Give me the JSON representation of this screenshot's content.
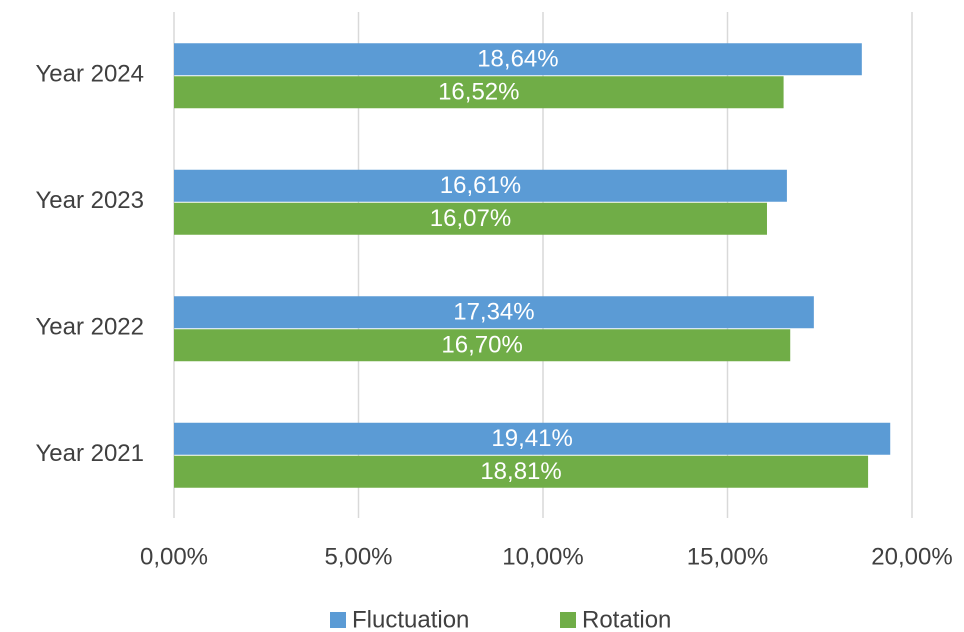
{
  "chart_data": {
    "type": "hbar",
    "categories": [
      "Year 2021",
      "Year 2022",
      "Year 2023",
      "Year 2024"
    ],
    "series": [
      {
        "name": "Fluctuation",
        "color": "#5b9bd5",
        "values": [
          19.41,
          17.34,
          16.61,
          18.64
        ],
        "value_labels": [
          "19,41%",
          "17,34%",
          "16,61%",
          "18,64%"
        ]
      },
      {
        "name": "Rotation",
        "color": "#70ad47",
        "values": [
          18.81,
          16.7,
          16.07,
          16.52
        ],
        "value_labels": [
          "18,81%",
          "16,70%",
          "16,07%",
          "16,52%"
        ]
      }
    ],
    "xlim": [
      0,
      20
    ],
    "xticks": [
      {
        "value": 0,
        "label": "0,00%"
      },
      {
        "value": 5,
        "label": "5,00%"
      },
      {
        "value": 10,
        "label": "10,00%"
      },
      {
        "value": 15,
        "label": "15,00%"
      },
      {
        "value": 20,
        "label": "20,00%"
      }
    ],
    "grid": true
  }
}
